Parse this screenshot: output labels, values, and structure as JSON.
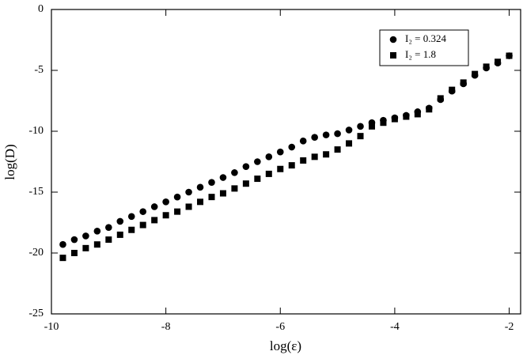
{
  "chart_data": {
    "type": "scatter",
    "xlabel": "log(ε)",
    "ylabel": "log(D)",
    "xlim": [
      -10,
      -1.8
    ],
    "ylim": [
      -25,
      0
    ],
    "xticks": [
      -10,
      -8,
      -6,
      -4,
      -2
    ],
    "yticks": [
      0,
      -5,
      -10,
      -15,
      -20,
      -25
    ],
    "legend": "top-right",
    "x": [
      -9.8,
      -9.6,
      -9.4,
      -9.2,
      -9.0,
      -8.8,
      -8.6,
      -8.4,
      -8.2,
      -8.0,
      -7.8,
      -7.6,
      -7.4,
      -7.2,
      -7.0,
      -6.8,
      -6.6,
      -6.4,
      -6.2,
      -6.0,
      -5.8,
      -5.6,
      -5.4,
      -5.2,
      -5.0,
      -4.8,
      -4.6,
      -4.4,
      -4.2,
      -4.0,
      -3.8,
      -3.6,
      -3.4,
      -3.2,
      -3.0,
      -2.8,
      -2.6,
      -2.4,
      -2.2,
      -2.0
    ],
    "series": [
      {
        "name": "I₂ = 0.324",
        "marker": "circle",
        "color": "#000000",
        "values": [
          -19.3,
          -18.9,
          -18.6,
          -18.2,
          -17.9,
          -17.4,
          -17.0,
          -16.6,
          -16.2,
          -15.8,
          -15.4,
          -15.0,
          -14.6,
          -14.2,
          -13.8,
          -13.4,
          -12.9,
          -12.5,
          -12.1,
          -11.7,
          -11.3,
          -10.8,
          -10.5,
          -10.3,
          -10.2,
          -9.9,
          -9.6,
          -9.3,
          -9.1,
          -8.9,
          -8.7,
          -8.4,
          -8.1,
          -7.4,
          -6.7,
          -6.1,
          -5.4,
          -4.8,
          -4.4,
          -3.8
        ]
      },
      {
        "name": "I₂ = 1.8",
        "marker": "square",
        "color": "#000000",
        "values": [
          -20.4,
          -20.0,
          -19.6,
          -19.3,
          -18.9,
          -18.5,
          -18.1,
          -17.7,
          -17.3,
          -16.9,
          -16.6,
          -16.2,
          -15.8,
          -15.4,
          -15.1,
          -14.7,
          -14.3,
          -13.9,
          -13.5,
          -13.1,
          -12.8,
          -12.4,
          -12.1,
          -11.9,
          -11.5,
          -11.0,
          -10.4,
          -9.6,
          -9.3,
          -9.0,
          -8.8,
          -8.6,
          -8.2,
          -7.3,
          -6.6,
          -6.0,
          -5.3,
          -4.7,
          -4.3,
          -3.8
        ]
      }
    ]
  }
}
